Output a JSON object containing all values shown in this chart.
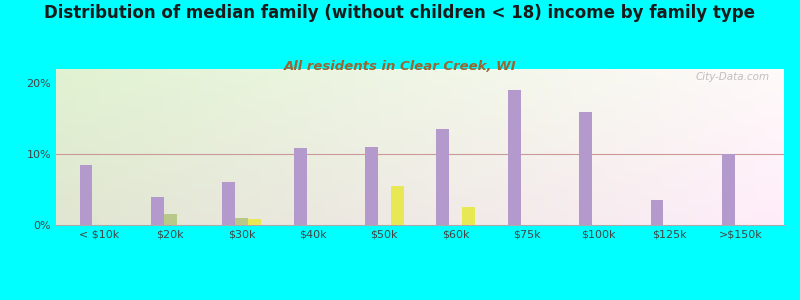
{
  "title": "Distribution of median family (without children < 18) income by family type",
  "subtitle": "All residents in Clear Creek, WI",
  "background_color": "#00FFFF",
  "categories": [
    "< $10k",
    "$20k",
    "$30k",
    "$40k",
    "$50k",
    "$60k",
    "$75k",
    "$100k",
    "$125k",
    ">$150k"
  ],
  "married_couple": [
    8.5,
    4.0,
    6.0,
    10.8,
    11.0,
    13.5,
    19.0,
    16.0,
    3.5,
    10.0
  ],
  "male_no_wife": [
    0.0,
    1.5,
    1.0,
    0.0,
    0.0,
    0.0,
    0.0,
    0.0,
    0.0,
    0.0
  ],
  "female_no_husband": [
    0.0,
    0.0,
    0.8,
    0.0,
    5.5,
    2.5,
    0.0,
    0.0,
    0.0,
    0.0
  ],
  "married_color": "#b399cc",
  "male_color": "#b8c888",
  "female_color": "#e8e855",
  "ylim": [
    0,
    22
  ],
  "yticks": [
    0,
    10,
    20
  ],
  "ytick_labels": [
    "0%",
    "10%",
    "20%"
  ],
  "bar_width": 0.18,
  "title_fontsize": 12,
  "subtitle_fontsize": 9.5,
  "tick_fontsize": 8,
  "legend_fontsize": 9,
  "watermark": "City-Data.com"
}
